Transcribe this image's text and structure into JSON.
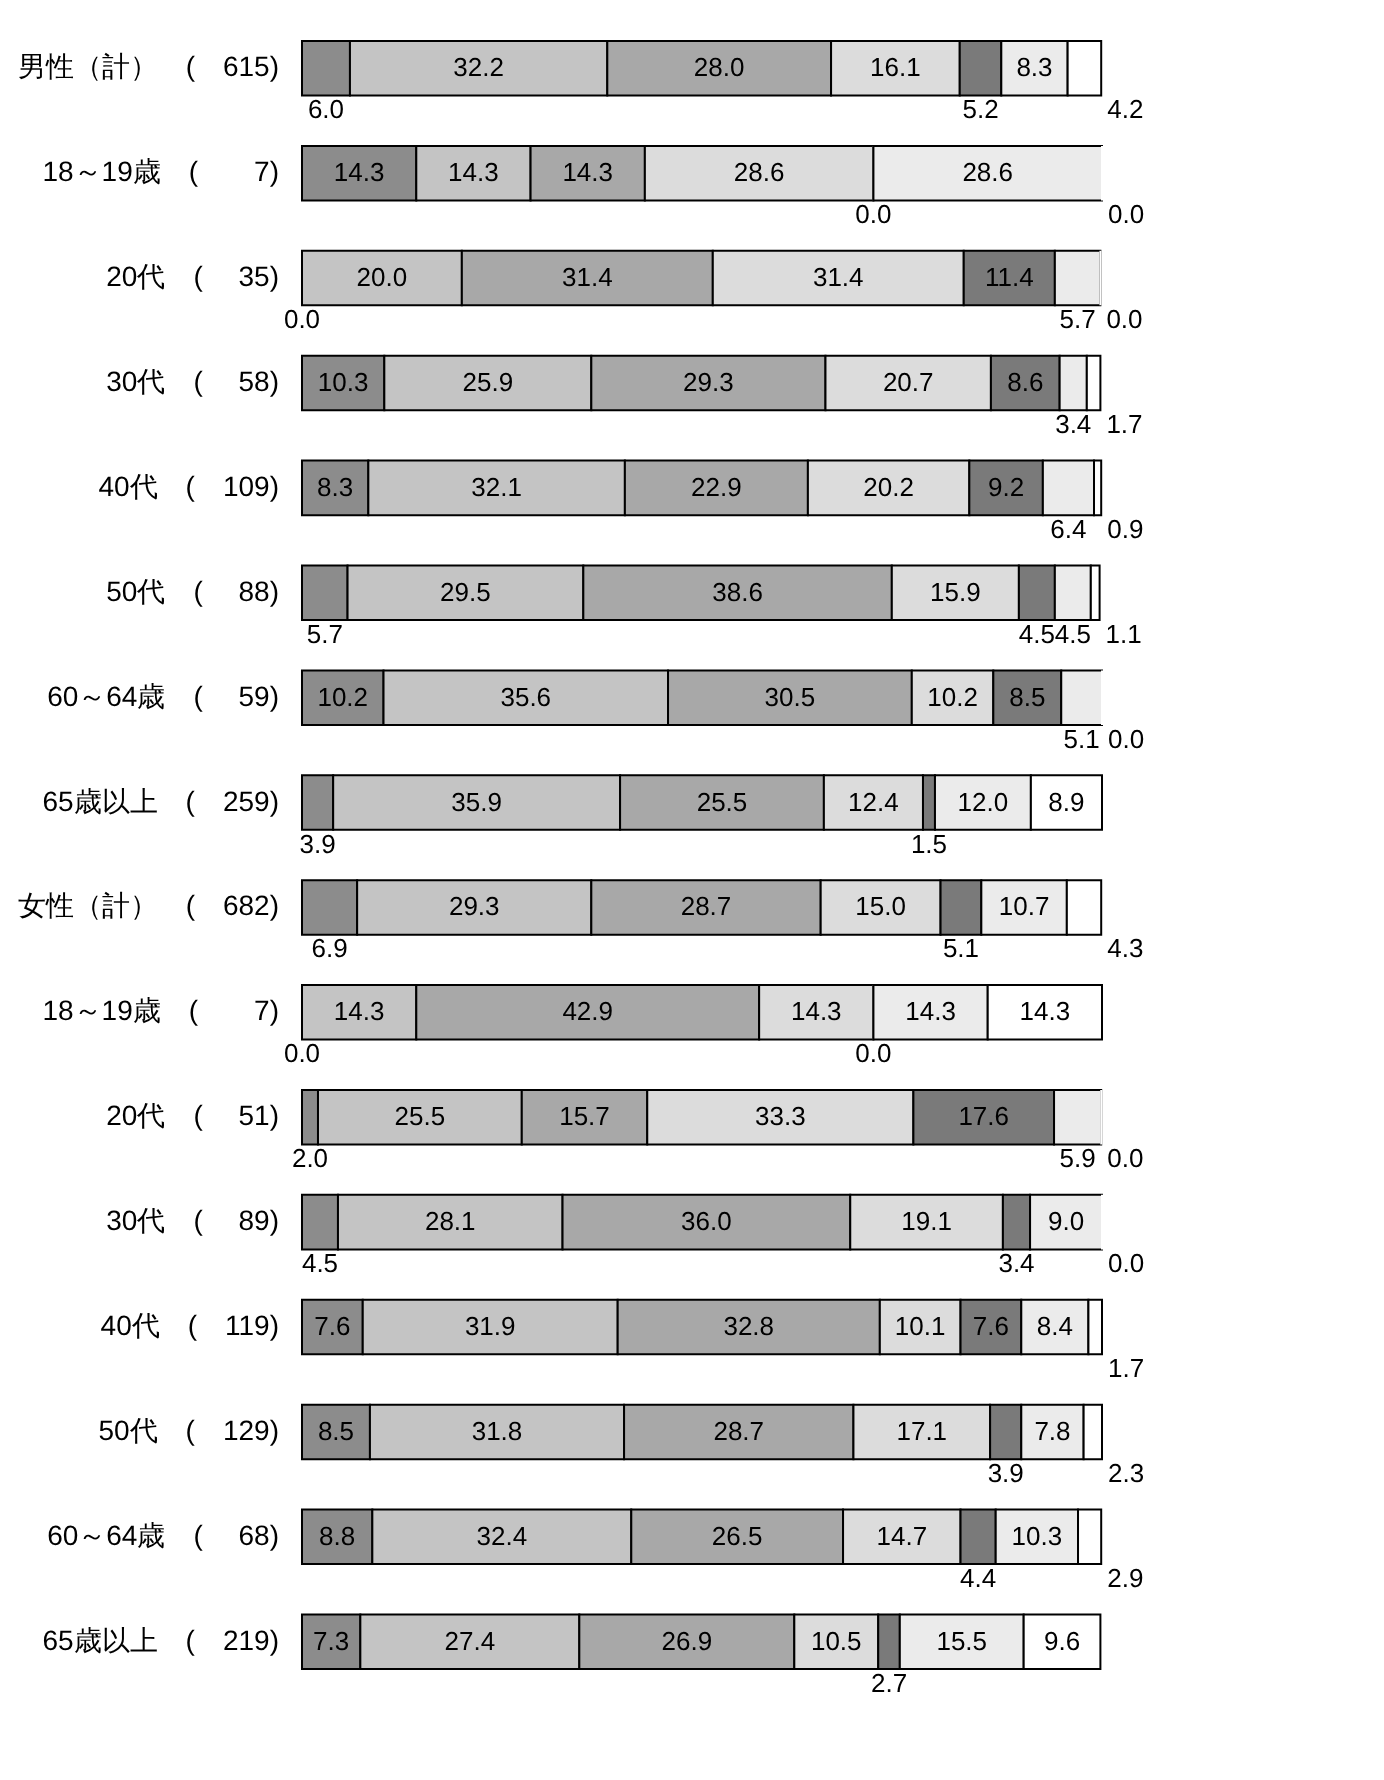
{
  "chart_data": {
    "type": "bar",
    "orientation": "horizontal",
    "stacked": true,
    "categories": [
      "男性（計）　(　615)",
      "18～19歳　(　　7)",
      "20代　(　 35)",
      "30代　(　 58)",
      "40代　(　109)",
      "50代　(　 88)",
      "60～64歳　(　 59)",
      "65歳以上　(　259)",
      "女性（計）　(　682)",
      "18～19歳　(　　7)",
      "20代　(　 51)",
      "30代　(　 89)",
      "40代　(　119)",
      "50代　(　129)",
      "60～64歳　(　 68)",
      "65歳以上　(　219)"
    ],
    "series": [
      {
        "color": "#8c8c8c",
        "values": [
          6.0,
          14.3,
          0.0,
          10.3,
          8.3,
          5.7,
          10.2,
          3.9,
          6.9,
          0.0,
          2.0,
          4.5,
          7.6,
          8.5,
          8.8,
          7.3
        ],
        "value_labels": [
          "6.0",
          "14.3",
          "0.0",
          "10.3",
          "8.3",
          "5.7",
          "10.2",
          "3.9",
          "6.9",
          "0.0",
          "2.0",
          "4.5",
          "7.6",
          "8.5",
          "8.8",
          "7.3"
        ]
      },
      {
        "color": "#c4c4c4",
        "values": [
          32.2,
          14.3,
          20.0,
          25.9,
          32.1,
          29.5,
          35.6,
          35.9,
          29.3,
          14.3,
          25.5,
          28.1,
          31.9,
          31.8,
          32.4,
          27.4
        ],
        "value_labels": [
          "32.2",
          "14.3",
          "20.0",
          "25.9",
          "32.1",
          "29.5",
          "35.6",
          "35.9",
          "29.3",
          "14.3",
          "25.5",
          "28.1",
          "31.9",
          "31.8",
          "32.4",
          "27.4"
        ]
      },
      {
        "color": "#a8a8a8",
        "values": [
          28.0,
          14.3,
          31.4,
          29.3,
          22.9,
          38.6,
          30.5,
          25.5,
          28.7,
          42.9,
          15.7,
          36.0,
          32.8,
          28.7,
          26.5,
          26.9
        ],
        "value_labels": [
          "28.0",
          "14.3",
          "31.4",
          "29.3",
          "22.9",
          "38.6",
          "30.5",
          "25.5",
          "28.7",
          "42.9",
          "15.7",
          "36.0",
          "32.8",
          "28.7",
          "26.5",
          "26.9"
        ]
      },
      {
        "color": "#dcdcdc",
        "values": [
          16.1,
          28.6,
          31.4,
          20.7,
          20.2,
          15.9,
          10.2,
          12.4,
          15.0,
          14.3,
          33.3,
          19.1,
          10.1,
          17.1,
          14.7,
          10.5
        ],
        "value_labels": [
          "16.1",
          "28.6",
          "31.4",
          "20.7",
          "20.2",
          "15.9",
          "10.2",
          "12.4",
          "15.0",
          "14.3",
          "33.3",
          "19.1",
          "10.1",
          "17.1",
          "14.7",
          "10.5"
        ]
      },
      {
        "color": "#7a7a7a",
        "values": [
          5.2,
          0.0,
          11.4,
          8.6,
          9.2,
          4.5,
          8.5,
          1.5,
          5.1,
          0.0,
          17.6,
          3.4,
          7.6,
          3.9,
          4.4,
          2.7
        ],
        "value_labels": [
          "5.2",
          "0.0",
          "11.4",
          "8.6",
          "9.2",
          "4.5",
          "8.5",
          "1.5",
          "5.1",
          "0.0",
          "17.6",
          "3.4",
          "7.6",
          "3.9",
          "4.4",
          "2.7"
        ]
      },
      {
        "color": "#ebebeb",
        "values": [
          8.3,
          28.6,
          5.7,
          3.4,
          6.4,
          4.5,
          5.1,
          12.0,
          10.7,
          14.3,
          5.9,
          9.0,
          8.4,
          7.8,
          10.3,
          15.5
        ],
        "value_labels": [
          "8.3",
          "28.6",
          "5.7",
          "3.4",
          "6.4",
          "4.5",
          "5.1",
          "12.0",
          "10.7",
          "14.3",
          "5.9",
          "9.0",
          "8.4",
          "7.8",
          "10.3",
          "15.5"
        ]
      },
      {
        "color": "#ffffff",
        "values": [
          4.2,
          0.0,
          0.0,
          1.7,
          0.9,
          1.1,
          0.0,
          8.9,
          4.3,
          14.3,
          0.0,
          0.0,
          1.7,
          2.3,
          2.9,
          9.6
        ],
        "value_labels": [
          "4.2",
          "0.0",
          "0.0",
          "1.7",
          "0.9",
          "1.1",
          "0.0",
          "8.9",
          "4.3",
          "14.3",
          "0.0",
          "0.0",
          "1.7",
          "2.3",
          "2.9",
          "9.6"
        ]
      }
    ]
  }
}
